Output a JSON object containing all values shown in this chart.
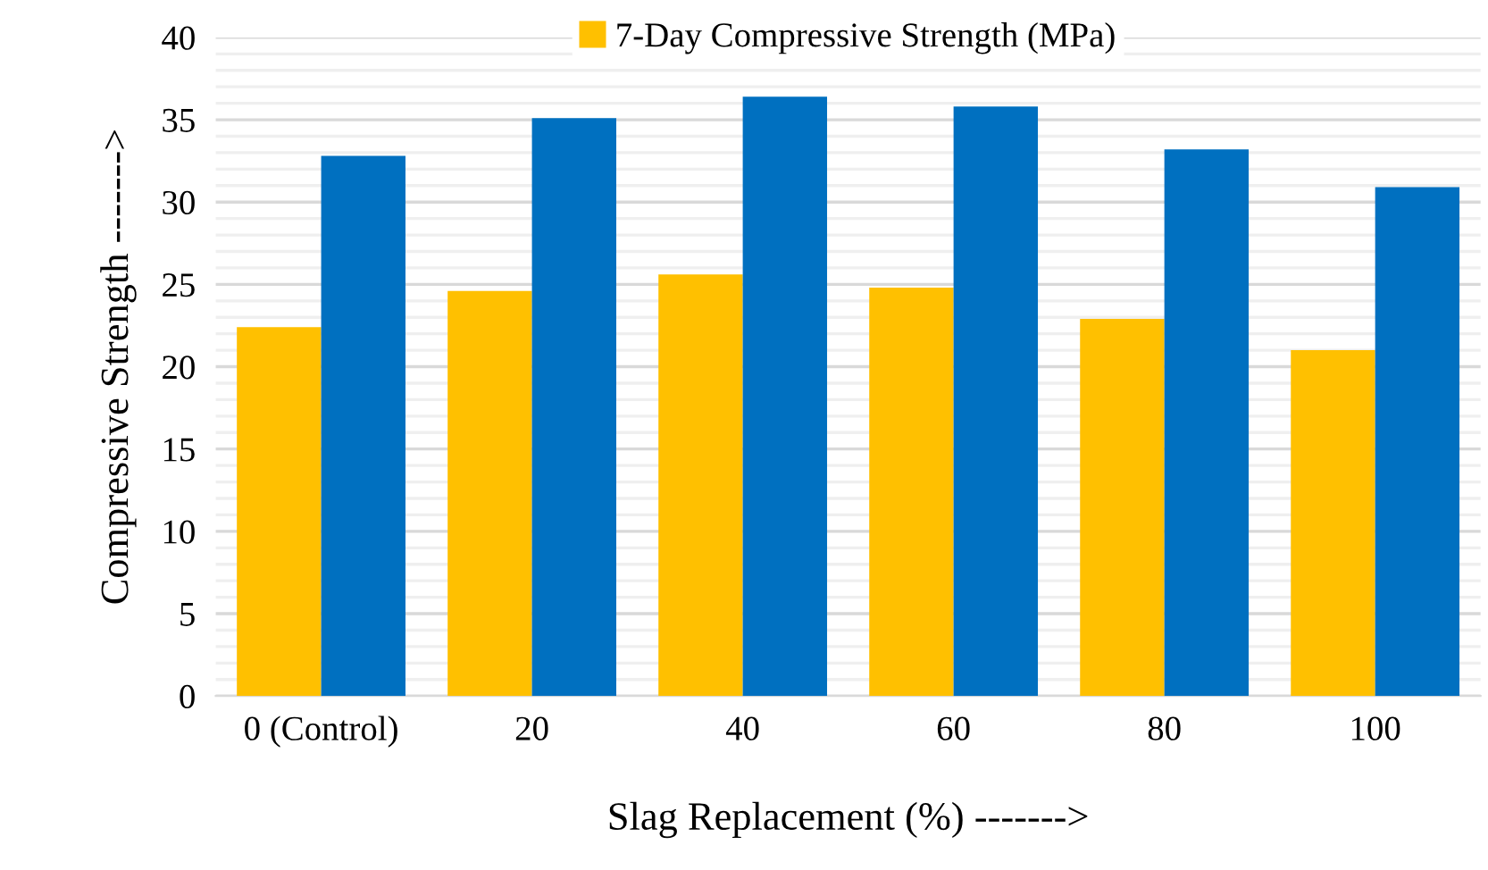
{
  "chart_data": {
    "type": "bar",
    "xlabel": "Slag Replacement (%) ------->",
    "ylabel": "Compressive Strength ------->",
    "categories": [
      "0 (Control)",
      "20",
      "40",
      "60",
      "80",
      "100"
    ],
    "series": [
      {
        "name": "7-Day Compressive Strength (MPa)",
        "color": "#ffc000",
        "values": [
          22.4,
          24.6,
          25.6,
          24.8,
          22.9,
          21.0
        ]
      },
      {
        "color": "#0070c0",
        "values": [
          32.8,
          35.1,
          36.4,
          35.8,
          33.2,
          30.9
        ]
      }
    ],
    "ylim": [
      0,
      40
    ],
    "yticks": [
      0,
      {
        "value": 1,
        "label": null
      },
      {
        "value": 2,
        "label": null
      },
      {
        "value": 3,
        "label": null
      },
      {
        "value": 4,
        "label": null
      },
      5,
      {
        "value": 6,
        "label": null
      },
      {
        "value": 7,
        "label": null
      },
      {
        "value": 8,
        "label": null
      },
      {
        "value": 9,
        "label": null
      },
      10,
      {
        "value": 11,
        "label": null
      },
      {
        "value": 12,
        "label": null
      },
      {
        "value": 13,
        "label": null
      },
      {
        "value": 14,
        "label": null
      },
      15,
      {
        "value": 16,
        "label": null
      },
      {
        "value": 17,
        "label": null
      },
      {
        "value": 18,
        "label": null
      },
      {
        "value": 19,
        "label": null
      },
      20,
      {
        "value": 21,
        "label": null
      },
      {
        "value": 22,
        "label": null
      },
      {
        "value": 23,
        "label": null
      },
      {
        "value": 24,
        "label": null
      },
      25,
      {
        "value": 26,
        "label": null
      },
      {
        "value": 27,
        "label": null
      },
      {
        "value": 28,
        "label": null
      },
      {
        "value": 29,
        "label": null
      },
      30,
      {
        "value": 31,
        "label": null
      },
      {
        "value": 32,
        "label": null
      },
      {
        "value": 33,
        "label": null
      },
      {
        "value": 34,
        "label": null
      },
      35,
      {
        "value": 36,
        "label": null
      },
      {
        "value": 37,
        "label": null
      },
      {
        "value": 38,
        "label": null
      },
      {
        "value": 39,
        "label": null
      },
      40
    ],
    "grid": "y",
    "legend": "top"
  }
}
